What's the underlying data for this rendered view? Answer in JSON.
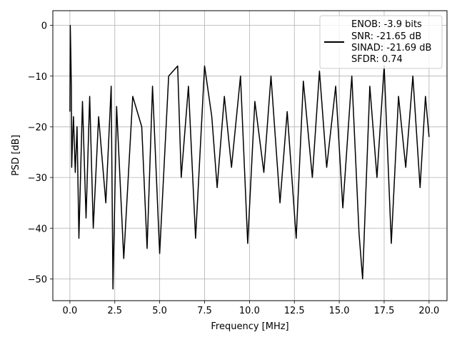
{
  "chart_data": {
    "type": "line",
    "title": "",
    "xlabel": "Frequency [MHz]",
    "ylabel": "PSD [dB]",
    "xlim": [
      -0.95,
      21.0
    ],
    "ylim": [
      -54.3,
      2.9
    ],
    "xticks": [
      0.0,
      2.5,
      5.0,
      7.5,
      10.0,
      12.5,
      15.0,
      17.5,
      20.0
    ],
    "xtick_labels": [
      "0.0",
      "2.5",
      "5.0",
      "7.5",
      "10.0",
      "12.5",
      "15.0",
      "17.5",
      "20.0"
    ],
    "yticks": [
      0,
      -10,
      -20,
      -30,
      -40,
      -50
    ],
    "ytick_labels": [
      "0",
      "−10",
      "−20",
      "−30",
      "−40",
      "−50"
    ],
    "grid": true,
    "legend_position": "top-right",
    "legend_lines": [
      "ENOB: -3.9 bits",
      "SNR: -21.65 dB",
      "SINAD: -21.69 dB",
      "SFDR: 0.74"
    ],
    "line_color": "#000000",
    "series": [
      {
        "x": [
          0.0,
          0.02,
          0.05,
          0.08,
          0.1,
          0.15,
          0.2,
          0.3,
          0.4,
          0.5,
          0.7,
          0.9,
          1.1,
          1.3,
          1.6,
          2.0,
          2.3,
          2.4,
          2.6,
          3.0,
          3.5,
          4.0,
          4.3,
          4.6,
          5.0,
          5.5,
          6.0,
          6.2,
          6.6,
          7.0,
          7.5,
          7.9,
          8.2,
          8.6,
          9.0,
          9.5,
          9.9,
          10.3,
          10.8,
          11.2,
          11.7,
          12.1,
          12.6,
          13.0,
          13.5,
          13.9,
          14.3,
          14.8,
          15.2,
          15.7,
          16.1,
          16.3,
          16.7,
          17.1,
          17.5,
          17.9,
          18.3,
          18.7,
          19.1,
          19.5,
          19.8,
          20.0
        ],
        "y": [
          -17,
          0,
          -5,
          -12,
          -28,
          -22,
          -18,
          -29,
          -20,
          -42,
          -15,
          -38,
          -14,
          -40,
          -18,
          -35,
          -12,
          -52,
          -16,
          -46,
          -14,
          -20,
          -44,
          -12,
          -45,
          -10,
          -8,
          -30,
          -12,
          -42,
          -8,
          -18,
          -32,
          -14,
          -28,
          -10,
          -43,
          -15,
          -29,
          -10,
          -35,
          -17,
          -42,
          -11,
          -30,
          -9,
          -28,
          -12,
          -36,
          -10,
          -41,
          -50,
          -12,
          -30,
          -8,
          -43,
          -14,
          -28,
          -10,
          -32,
          -14,
          -22
        ]
      }
    ]
  }
}
